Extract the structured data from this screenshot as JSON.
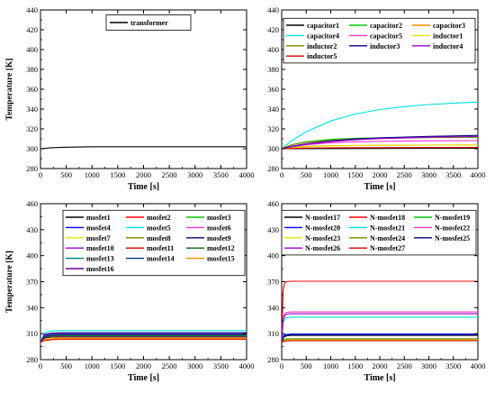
{
  "chart_data": [
    {
      "type": "line",
      "ylabel": "Temperature [K]",
      "xlabel": "Time [s]",
      "xlim": [
        0,
        4000
      ],
      "ylim": [
        280,
        440
      ],
      "xticks": [
        0,
        500,
        1000,
        1500,
        2000,
        2500,
        3000,
        3500,
        4000
      ],
      "yticks": [
        280,
        300,
        320,
        340,
        360,
        380,
        400,
        420,
        440
      ],
      "legend_position": "top-right",
      "legend_columns": 1,
      "series": [
        {
          "name": "transformer",
          "color": "#000000",
          "x": [
            0,
            200,
            500,
            1000,
            2000,
            3000,
            4000
          ],
          "y": [
            300,
            301,
            301.5,
            302,
            302,
            302,
            302
          ]
        }
      ]
    },
    {
      "type": "line",
      "ylabel": "",
      "xlabel": "Time [s]",
      "xlim": [
        0,
        4000
      ],
      "ylim": [
        280,
        440
      ],
      "xticks": [
        0,
        500,
        1000,
        1500,
        2000,
        2500,
        3000,
        3500,
        4000
      ],
      "yticks": [
        280,
        300,
        320,
        340,
        360,
        380,
        400,
        420,
        440
      ],
      "legend_position": "top",
      "legend_columns": 3,
      "series": [
        {
          "name": "capacitor1",
          "color": "#000000",
          "x": [
            0,
            4000
          ],
          "y": [
            300,
            300.5
          ]
        },
        {
          "name": "capacitor2",
          "color": "#00cc00",
          "x": [
            0,
            200,
            500,
            1000,
            1500,
            2000,
            3000,
            4000
          ],
          "y": [
            300,
            304,
            307,
            309.5,
            310.5,
            311,
            311.3,
            311.5
          ]
        },
        {
          "name": "capacitor3",
          "color": "#ff8c00",
          "x": [
            0,
            200,
            500,
            1000,
            1500,
            2000,
            3000,
            4000
          ],
          "y": [
            300,
            301.5,
            302.5,
            303,
            303.3,
            303.5,
            303.7,
            303.8
          ]
        },
        {
          "name": "capacitor4",
          "color": "#00e0e0",
          "x": [
            0,
            200,
            500,
            1000,
            1500,
            2000,
            2500,
            3000,
            3500,
            4000
          ],
          "y": [
            300,
            308,
            317,
            328,
            335,
            339.5,
            342.5,
            344.5,
            346,
            347
          ]
        },
        {
          "name": "capacitor5",
          "color": "#ff33cc",
          "x": [
            0,
            200,
            500,
            1000,
            1500,
            2000,
            3000,
            4000
          ],
          "y": [
            300,
            302,
            304,
            306,
            307,
            307.5,
            308,
            308.2
          ]
        },
        {
          "name": "inductor1",
          "color": "#e6e600",
          "x": [
            0,
            200,
            500,
            1000,
            1500,
            2000,
            3000,
            4000
          ],
          "y": [
            300,
            301,
            302,
            302.8,
            303.2,
            303.4,
            303.6,
            303.7
          ]
        },
        {
          "name": "inductor2",
          "color": "#808000",
          "x": [
            0,
            200,
            500,
            1000,
            1500,
            2000,
            3000,
            4000
          ],
          "y": [
            300,
            304,
            306.5,
            308.5,
            309.8,
            310.5,
            311.3,
            311.8
          ]
        },
        {
          "name": "inductor3",
          "color": "#000080",
          "x": [
            0,
            200,
            500,
            1000,
            1500,
            2000,
            3000,
            4000
          ],
          "y": [
            300,
            302.5,
            305,
            307.8,
            309.8,
            311,
            312.5,
            313.5
          ]
        },
        {
          "name": "inductor4",
          "color": "#9900cc",
          "x": [
            0,
            200,
            500,
            1000,
            1500,
            2000,
            3000,
            4000
          ],
          "y": [
            300,
            302,
            304.5,
            307.2,
            309,
            310.2,
            311.6,
            312.4
          ]
        },
        {
          "name": "inductor5",
          "color": "#cc0000",
          "x": [
            0,
            200,
            500,
            1000,
            2000,
            3000,
            4000
          ],
          "y": [
            300,
            300.3,
            300.6,
            300.9,
            301.1,
            301.2,
            301.3
          ]
        }
      ]
    },
    {
      "type": "line",
      "ylabel": "Temperature [K]",
      "xlabel": "Time [s]",
      "xlim": [
        0,
        4000
      ],
      "ylim": [
        280,
        460
      ],
      "xticks": [
        0,
        500,
        1000,
        1500,
        2000,
        2500,
        3000,
        3500,
        4000
      ],
      "yticks": [
        280,
        310,
        340,
        370,
        400,
        430,
        460
      ],
      "legend_position": "top-left",
      "legend_columns": 3,
      "series": [
        {
          "name": "mosfet1",
          "color": "#000000",
          "x": [
            0,
            80,
            200,
            400,
            4000
          ],
          "y": [
            300,
            305,
            306,
            306.5,
            306.5
          ]
        },
        {
          "name": "mosfet2",
          "color": "#ff0000",
          "x": [
            0,
            80,
            200,
            400,
            4000
          ],
          "y": [
            300,
            303,
            304,
            304.5,
            304.5
          ]
        },
        {
          "name": "mosfet3",
          "color": "#00cc00",
          "x": [
            0,
            80,
            200,
            400,
            4000
          ],
          "y": [
            300,
            306,
            307,
            307.5,
            307.5
          ]
        },
        {
          "name": "mosfet4",
          "color": "#0000ff",
          "x": [
            0,
            80,
            200,
            400,
            4000
          ],
          "y": [
            300,
            307,
            308,
            308.5,
            308.5
          ]
        },
        {
          "name": "mosfet5",
          "color": "#00e0e0",
          "x": [
            0,
            80,
            200,
            400,
            4000
          ],
          "y": [
            300,
            311,
            313,
            313.5,
            313.5
          ]
        },
        {
          "name": "mosfet6",
          "color": "#ff33cc",
          "x": [
            0,
            80,
            200,
            400,
            4000
          ],
          "y": [
            300,
            306,
            307.5,
            308,
            308
          ]
        },
        {
          "name": "mosfet7",
          "color": "#e6e600",
          "x": [
            0,
            80,
            200,
            400,
            4000
          ],
          "y": [
            300,
            304,
            305,
            305.5,
            305.5
          ]
        },
        {
          "name": "mosfet8",
          "color": "#808000",
          "x": [
            0,
            80,
            200,
            400,
            4000
          ],
          "y": [
            300,
            305,
            306,
            306.5,
            306.5
          ]
        },
        {
          "name": "mosfet9",
          "color": "#000080",
          "x": [
            0,
            80,
            200,
            400,
            4000
          ],
          "y": [
            300,
            309,
            310.5,
            311,
            311
          ]
        },
        {
          "name": "mosfet10",
          "color": "#9900cc",
          "x": [
            0,
            80,
            200,
            400,
            4000
          ],
          "y": [
            300,
            308,
            309.5,
            310,
            310
          ]
        },
        {
          "name": "mosfet11",
          "color": "#cc0000",
          "x": [
            0,
            80,
            200,
            400,
            4000
          ],
          "y": [
            300,
            302,
            303,
            303.5,
            303.5
          ]
        },
        {
          "name": "mosfet12",
          "color": "#006600",
          "x": [
            0,
            80,
            200,
            400,
            4000
          ],
          "y": [
            300,
            306,
            307.5,
            308,
            308
          ]
        },
        {
          "name": "mosfet13",
          "color": "#008080",
          "x": [
            0,
            80,
            200,
            400,
            4000
          ],
          "y": [
            300,
            307,
            308.5,
            309,
            309
          ]
        },
        {
          "name": "mosfet14",
          "color": "#003399",
          "x": [
            0,
            80,
            200,
            400,
            4000
          ],
          "y": [
            300,
            307,
            308.2,
            308.8,
            308.8
          ]
        },
        {
          "name": "mosfet15",
          "color": "#ff8c00",
          "x": [
            0,
            80,
            200,
            400,
            4000
          ],
          "y": [
            300,
            303,
            304,
            304.2,
            304.2
          ]
        },
        {
          "name": "mosfet16",
          "color": "#660099",
          "x": [
            0,
            80,
            200,
            400,
            4000
          ],
          "y": [
            300,
            305,
            306,
            306.2,
            306.2
          ]
        }
      ]
    },
    {
      "type": "line",
      "ylabel": "",
      "xlabel": "Time [s]",
      "xlim": [
        0,
        4000
      ],
      "ylim": [
        280,
        460
      ],
      "xticks": [
        0,
        500,
        1000,
        1500,
        2000,
        2500,
        3000,
        3500,
        4000
      ],
      "yticks": [
        280,
        310,
        340,
        370,
        400,
        430,
        460
      ],
      "legend_position": "top",
      "legend_columns": 3,
      "series": [
        {
          "name": "N-mosfet17",
          "color": "#000000",
          "x": [
            0,
            40,
            100,
            200,
            4000
          ],
          "y": [
            300,
            306,
            307.5,
            308,
            308
          ]
        },
        {
          "name": "N-mosfet18",
          "color": "#ff0000",
          "x": [
            0,
            30,
            60,
            100,
            200,
            4000
          ],
          "y": [
            300,
            360,
            368,
            370,
            370.5,
            370.5
          ]
        },
        {
          "name": "N-mosfet19",
          "color": "#00cc00",
          "x": [
            0,
            40,
            100,
            200,
            4000
          ],
          "y": [
            300,
            303,
            304,
            304,
            304
          ]
        },
        {
          "name": "N-mosfet20",
          "color": "#0000ff",
          "x": [
            0,
            40,
            100,
            200,
            4000
          ],
          "y": [
            300,
            308,
            309,
            309.5,
            309.5
          ]
        },
        {
          "name": "N-mosfet21",
          "color": "#00e0e0",
          "x": [
            0,
            30,
            60,
            100,
            200,
            4000
          ],
          "y": [
            300,
            322,
            327,
            328.5,
            329,
            329
          ]
        },
        {
          "name": "N-mosfet22",
          "color": "#ff33cc",
          "x": [
            0,
            30,
            60,
            100,
            200,
            4000
          ],
          "y": [
            300,
            327,
            333,
            334.5,
            335,
            335
          ]
        },
        {
          "name": "N-mosfet23",
          "color": "#e6e600",
          "x": [
            0,
            40,
            100,
            200,
            4000
          ],
          "y": [
            300,
            302,
            302.5,
            303,
            303
          ]
        },
        {
          "name": "N-mosfet24",
          "color": "#808000",
          "x": [
            0,
            40,
            100,
            200,
            4000
          ],
          "y": [
            300,
            303,
            303.5,
            304,
            304
          ]
        },
        {
          "name": "N-mosfet25",
          "color": "#000080",
          "x": [
            0,
            40,
            100,
            200,
            4000
          ],
          "y": [
            300,
            307,
            308,
            308.5,
            308.5
          ]
        },
        {
          "name": "N-mosfet26",
          "color": "#9900cc",
          "x": [
            0,
            30,
            60,
            100,
            200,
            4000
          ],
          "y": [
            300,
            326,
            331,
            332.5,
            333,
            333
          ]
        },
        {
          "name": "N-mosfet27",
          "color": "#cc0000",
          "x": [
            0,
            40,
            100,
            200,
            4000
          ],
          "y": [
            300,
            301,
            301.5,
            302,
            302
          ]
        }
      ]
    }
  ]
}
